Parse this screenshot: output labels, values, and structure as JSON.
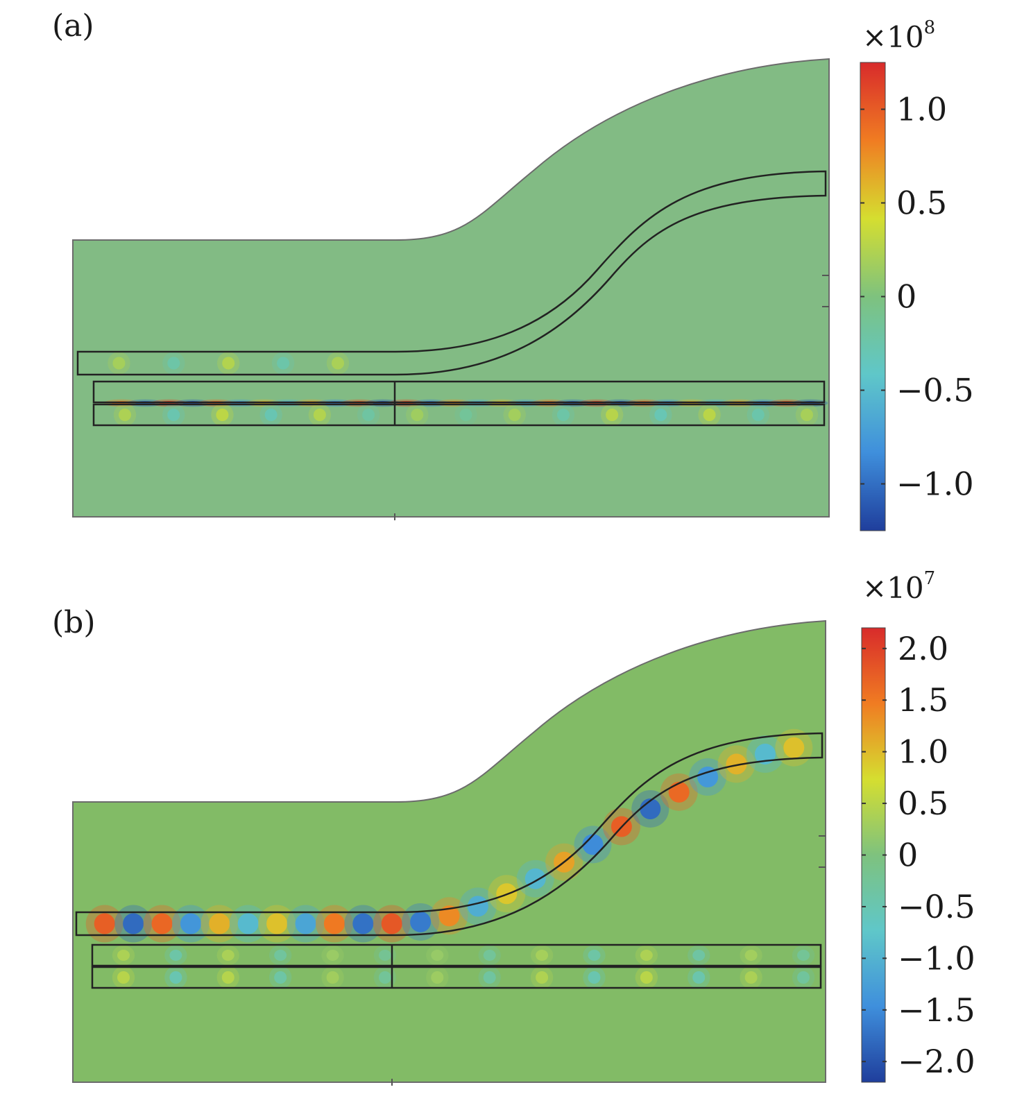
{
  "chart_data": [
    {
      "type": "heatmap",
      "panel_label": "(a)",
      "colorbar": {
        "multiplier": "×10",
        "exponent": "8",
        "range": [
          -1.25,
          1.25
        ],
        "ticks": [
          1.0,
          0.5,
          0,
          -0.5,
          -1.0
        ],
        "tick_labels": [
          "1.0",
          "0.5",
          "0",
          "−0.5",
          "−1.0"
        ],
        "colormap": [
          "#1f3e9c",
          "#3f8fdc",
          "#5fc7c9",
          "#7ec27e",
          "#d5de30",
          "#f07c22",
          "#d82b2b"
        ]
      },
      "background_value": 0.0,
      "field_rows": [
        {
          "region": "s-bend-waveguide",
          "value": 0.25,
          "count": 5
        },
        {
          "region": "straight-waveguide-top",
          "value": 0.15,
          "count": 0
        },
        {
          "region": "straight-waveguide-gap",
          "value": 1.1,
          "count": 30
        },
        {
          "region": "straight-waveguide-bottom",
          "value": 0.3,
          "count": 15
        }
      ]
    },
    {
      "type": "heatmap",
      "panel_label": "(b)",
      "colorbar": {
        "multiplier": "×10",
        "exponent": "7",
        "range": [
          -2.2,
          2.2
        ],
        "ticks": [
          2.0,
          1.5,
          1.0,
          0.5,
          0,
          -0.5,
          -1.0,
          -1.5,
          -2.0
        ],
        "tick_labels": [
          "2.0",
          "1.5",
          "1.0",
          "0.5",
          "0",
          "−0.5",
          "−1.0",
          "−1.5",
          "−2.0"
        ],
        "colormap": [
          "#1f3e9c",
          "#3f8fdc",
          "#5fc7c9",
          "#7ec27e",
          "#d5de30",
          "#f07c22",
          "#d82b2b"
        ]
      },
      "background_value": 0.0,
      "field_rows": [
        {
          "region": "s-bend-waveguide",
          "value": 1.8,
          "count": 25
        },
        {
          "region": "straight-waveguide-top",
          "value": 0.4,
          "count": 14
        },
        {
          "region": "straight-waveguide-bottom",
          "value": 0.5,
          "count": 14
        }
      ]
    }
  ]
}
